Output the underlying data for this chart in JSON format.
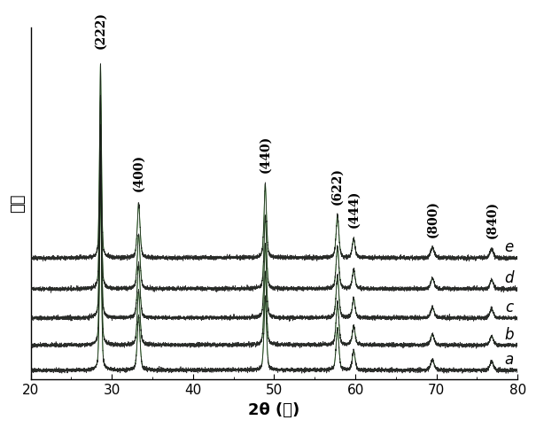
{
  "xlim": [
    20,
    80
  ],
  "xlabel": "2θ (度)",
  "ylabel": "强度",
  "peak_labels": [
    "(222)",
    "(400)",
    "(440)",
    "(622)",
    "(444)",
    "(800)",
    "(840)"
  ],
  "peak_positions": [
    28.6,
    33.3,
    48.9,
    57.8,
    59.8,
    69.5,
    76.8
  ],
  "peak_heights": [
    1.0,
    0.28,
    0.38,
    0.22,
    0.1,
    0.055,
    0.048
  ],
  "peak_widths_sigma": [
    0.12,
    0.18,
    0.16,
    0.18,
    0.18,
    0.22,
    0.22
  ],
  "series_labels": [
    "a",
    "b",
    "c",
    "d",
    "e"
  ],
  "series_offsets": [
    0.0,
    0.13,
    0.27,
    0.42,
    0.58
  ],
  "noise_scale": 0.005,
  "background_color": "#ffffff",
  "line_color_dark": "#1a1a1a",
  "line_color_green": "#2e8b22",
  "tick_fontsize": 11,
  "label_fontsize": 13,
  "annotation_fontsize": 10,
  "series_label_fontsize": 12
}
